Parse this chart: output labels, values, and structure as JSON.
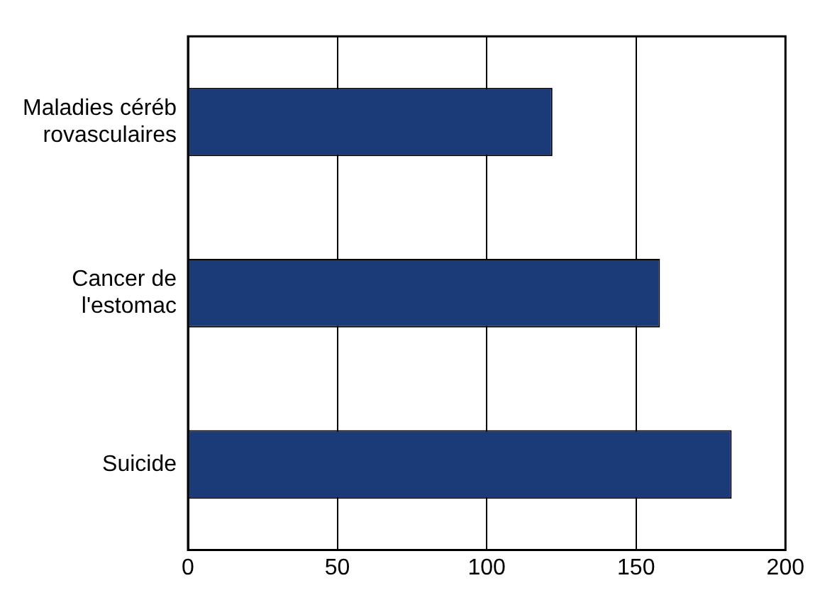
{
  "chart_data": {
    "type": "bar",
    "orientation": "horizontal",
    "categories": [
      "Maladies céréb rovasculaires",
      "Cancer de l'estomac",
      "Suicide"
    ],
    "values": [
      122,
      158,
      182
    ],
    "color": "#1b3a78",
    "xlim": [
      0,
      200
    ],
    "xticks": [
      0,
      50,
      100,
      150,
      200
    ],
    "grid": "x",
    "legend": false
  }
}
